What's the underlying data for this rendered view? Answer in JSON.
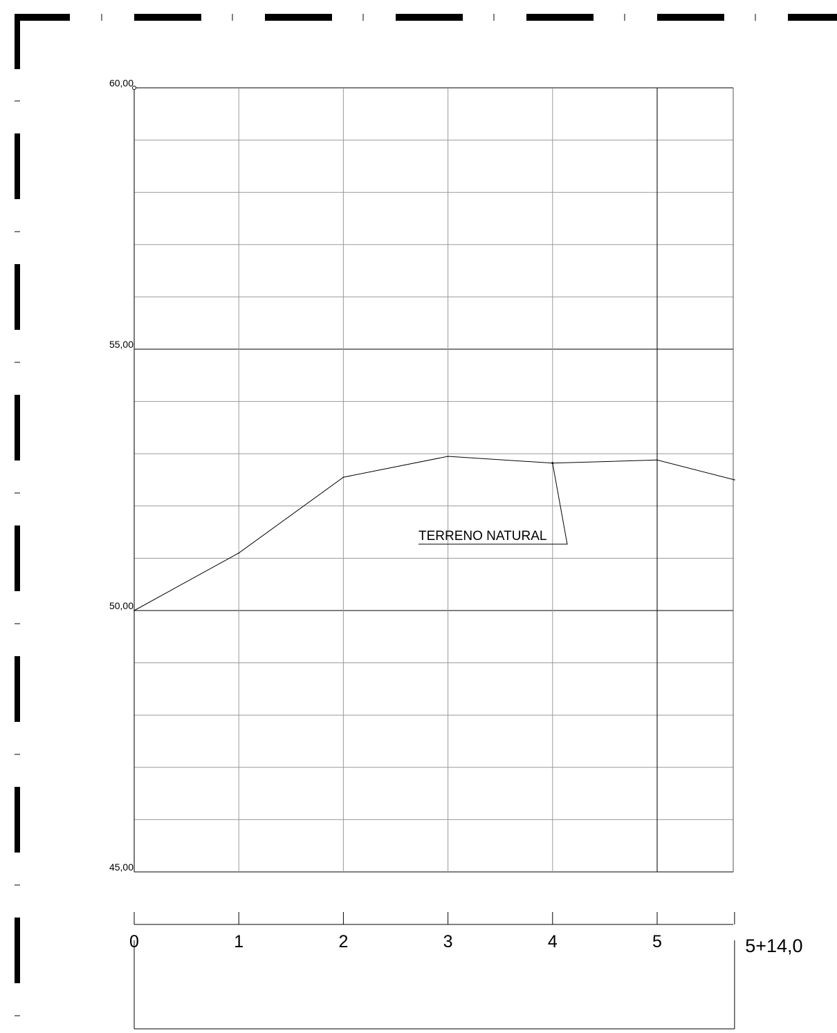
{
  "chart_data": {
    "type": "line",
    "title": "",
    "xlabel": "",
    "ylabel": "",
    "grid": true,
    "xlim": [
      0,
      5.74
    ],
    "ylim": [
      45,
      60
    ],
    "y_major_ticks": [
      45,
      50,
      55,
      60
    ],
    "y_tick_labels": [
      "45,00",
      "50,00",
      "55,00",
      "60,00"
    ],
    "y_minor_step": 1,
    "x_ticks": [
      0,
      1,
      2,
      3,
      4,
      5
    ],
    "x_tick_labels": [
      "0",
      "1",
      "2",
      "3",
      "4",
      "5"
    ],
    "x_end": 5.74,
    "x_end_label": "5+14,0",
    "series": [
      {
        "name": "TERRENO NATURAL",
        "x": [
          0,
          1,
          2,
          3,
          4,
          5,
          5.74
        ],
        "y": [
          50.0,
          51.1,
          52.55,
          52.95,
          52.82,
          52.88,
          52.5
        ]
      }
    ],
    "annotation": {
      "text": "TERRENO NATURAL",
      "points_to": {
        "x": 4,
        "y": 52.82
      }
    }
  }
}
